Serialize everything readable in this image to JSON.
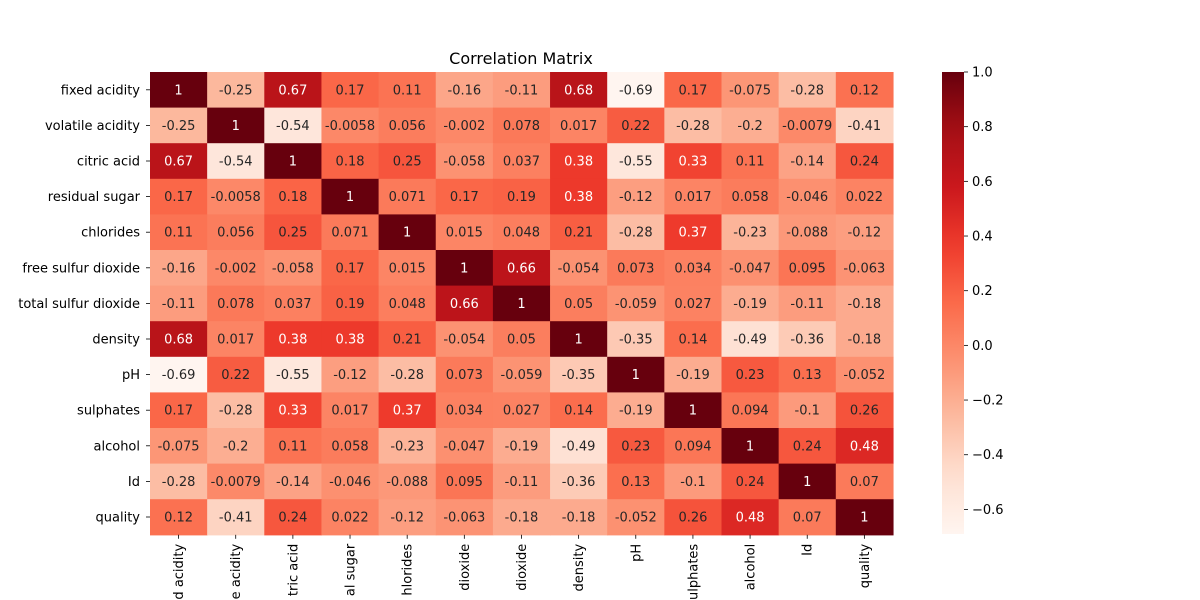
{
  "chart_data": {
    "type": "heatmap",
    "title": "Correlation Matrix",
    "labels": [
      "fixed acidity",
      "volatile acidity",
      "citric acid",
      "residual sugar",
      "chlorides",
      "free sulfur dioxide",
      "total sulfur dioxide",
      "density",
      "pH",
      "sulphates",
      "alcohol",
      "Id",
      "quality"
    ],
    "xtick_visible": [
      "d acidity",
      "e acidity",
      "tric acid",
      "al sugar",
      "hlorides",
      "dioxide",
      "dioxide",
      "density",
      "pH",
      "ulphates",
      "alcohol",
      "Id",
      "quality"
    ],
    "matrix": [
      [
        "1",
        "-0.25",
        "0.67",
        "0.17",
        "0.11",
        "-0.16",
        "-0.11",
        "0.68",
        "-0.69",
        "0.17",
        "-0.075",
        "-0.28",
        "0.12"
      ],
      [
        "-0.25",
        "1",
        "-0.54",
        "-0.0058",
        "0.056",
        "-0.002",
        "0.078",
        "0.017",
        "0.22",
        "-0.28",
        "-0.2",
        "-0.0079",
        "-0.41"
      ],
      [
        "0.67",
        "-0.54",
        "1",
        "0.18",
        "0.25",
        "-0.058",
        "0.037",
        "0.38",
        "-0.55",
        "0.33",
        "0.11",
        "-0.14",
        "0.24"
      ],
      [
        "0.17",
        "-0.0058",
        "0.18",
        "1",
        "0.071",
        "0.17",
        "0.19",
        "0.38",
        "-0.12",
        "0.017",
        "0.058",
        "-0.046",
        "0.022"
      ],
      [
        "0.11",
        "0.056",
        "0.25",
        "0.071",
        "1",
        "0.015",
        "0.048",
        "0.21",
        "-0.28",
        "0.37",
        "-0.23",
        "-0.088",
        "-0.12"
      ],
      [
        "-0.16",
        "-0.002",
        "-0.058",
        "0.17",
        "0.015",
        "1",
        "0.66",
        "-0.054",
        "0.073",
        "0.034",
        "-0.047",
        "0.095",
        "-0.063"
      ],
      [
        "-0.11",
        "0.078",
        "0.037",
        "0.19",
        "0.048",
        "0.66",
        "1",
        "0.05",
        "-0.059",
        "0.027",
        "-0.19",
        "-0.11",
        "-0.18"
      ],
      [
        "0.68",
        "0.017",
        "0.38",
        "0.38",
        "0.21",
        "-0.054",
        "0.05",
        "1",
        "-0.35",
        "0.14",
        "-0.49",
        "-0.36",
        "-0.18"
      ],
      [
        "-0.69",
        "0.22",
        "-0.55",
        "-0.12",
        "-0.28",
        "0.073",
        "-0.059",
        "-0.35",
        "1",
        "-0.19",
        "0.23",
        "0.13",
        "-0.052"
      ],
      [
        "0.17",
        "-0.28",
        "0.33",
        "0.017",
        "0.37",
        "0.034",
        "0.027",
        "0.14",
        "-0.19",
        "1",
        "0.094",
        "-0.1",
        "0.26"
      ],
      [
        "-0.075",
        "-0.2",
        "0.11",
        "0.058",
        "-0.23",
        "-0.047",
        "-0.19",
        "-0.49",
        "0.23",
        "0.094",
        "1",
        "0.24",
        "0.48"
      ],
      [
        "-0.28",
        "-0.0079",
        "-0.14",
        "-0.046",
        "-0.088",
        "0.095",
        "-0.11",
        "-0.36",
        "0.13",
        "-0.1",
        "0.24",
        "1",
        "0.07"
      ],
      [
        "0.12",
        "-0.41",
        "0.24",
        "0.022",
        "-0.12",
        "-0.063",
        "-0.18",
        "-0.18",
        "-0.052",
        "0.26",
        "0.48",
        "0.07",
        "1"
      ]
    ],
    "colormap": "Reds",
    "vmin": -0.69,
    "vmax": 1.0,
    "colorbar_ticks": [
      "1.0",
      "0.8",
      "0.6",
      "0.4",
      "0.2",
      "0.0",
      "−0.2",
      "−0.4",
      "−0.6"
    ],
    "colorbar_tick_values": [
      1.0,
      0.8,
      0.6,
      0.4,
      0.2,
      0.0,
      -0.2,
      -0.4,
      -0.6
    ],
    "grid": false,
    "legend": "colorbar-right"
  }
}
